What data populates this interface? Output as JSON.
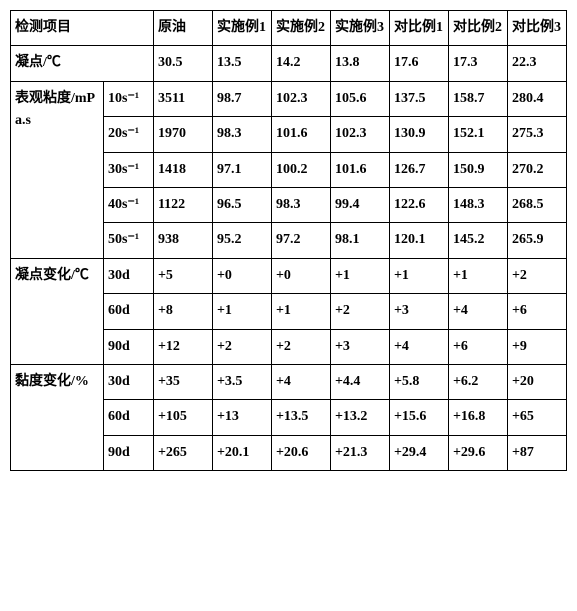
{
  "headers": {
    "test_item": "检测项目",
    "crude": "原油",
    "ex1": "实施例1",
    "ex2": "实施例2",
    "ex3": "实施例3",
    "cmp1": "对比例1",
    "cmp2": "对比例2",
    "cmp3": "对比例3"
  },
  "rows": {
    "pour_point": {
      "label": "凝点/℃",
      "vals": [
        "30.5",
        "13.5",
        "14.2",
        "13.8",
        "17.6",
        "17.3",
        "22.3"
      ]
    },
    "viscosity": {
      "label": "表观粘度/mPa.s",
      "subs": [
        "10s⁻¹",
        "20s⁻¹",
        "30s⁻¹",
        "40s⁻¹",
        "50s⁻¹"
      ],
      "data": [
        [
          "3511",
          "98.7",
          "102.3",
          "105.6",
          "137.5",
          "158.7",
          "280.4"
        ],
        [
          "1970",
          "98.3",
          "101.6",
          "102.3",
          "130.9",
          "152.1",
          "275.3"
        ],
        [
          "1418",
          "97.1",
          "100.2",
          "101.6",
          "126.7",
          "150.9",
          "270.2"
        ],
        [
          "1122",
          "96.5",
          "98.3",
          "99.4",
          "122.6",
          "148.3",
          "268.5"
        ],
        [
          "938",
          "95.2",
          "97.2",
          "98.1",
          "120.1",
          "145.2",
          "265.9"
        ]
      ]
    },
    "pour_change": {
      "label": "凝点变化/℃",
      "subs": [
        "30d",
        "60d",
        "90d"
      ],
      "data": [
        [
          "+5",
          "+0",
          "+0",
          "+1",
          "+1",
          "+1",
          "+2"
        ],
        [
          "+8",
          "+1",
          "+1",
          "+2",
          "+3",
          "+4",
          "+6"
        ],
        [
          "+12",
          "+2",
          "+2",
          "+3",
          "+4",
          "+6",
          "+9"
        ]
      ]
    },
    "visc_change": {
      "label": "黏度变化/%",
      "subs": [
        "30d",
        "60d",
        "90d"
      ],
      "data": [
        [
          "+35",
          "+3.5",
          "+4",
          "+4.4",
          "+5.8",
          "+6.2",
          "+20"
        ],
        [
          "+105",
          "+13",
          "+13.5",
          "+13.2",
          "+15.6",
          "+16.8",
          "+65"
        ],
        [
          "+265",
          "+20.1",
          "+20.6",
          "+21.3",
          "+29.4",
          "+29.6",
          "+87"
        ]
      ]
    }
  }
}
